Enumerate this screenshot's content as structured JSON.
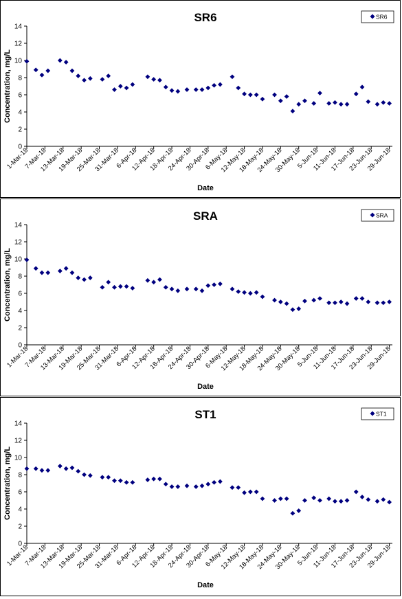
{
  "colors": {
    "marker": "#00007F",
    "axis": "#000000",
    "background": "#FFFFFF"
  },
  "chart_data": [
    {
      "type": "scatter",
      "title": "SR6",
      "xlabel": "Date",
      "ylabel": "Concentration, mg/L",
      "ylim": [
        0,
        14
      ],
      "yticks": [
        0,
        2,
        4,
        6,
        8,
        10,
        12,
        14
      ],
      "xlim": [
        "2018-03-01",
        "2018-06-30"
      ],
      "xtick_labels": [
        "1-Mar-18",
        "7-Mar-18",
        "13-Mar-18",
        "19-Mar-18",
        "25-Mar-18",
        "31-Mar-18",
        "6-Apr-18",
        "12-Apr-18",
        "18-Apr-18",
        "24-Apr-18",
        "30-Apr-18",
        "6-May-18",
        "12-May-18",
        "18-May-18",
        "24-May-18",
        "30-May-18",
        "5-Jun-18",
        "11-Jun-18",
        "17-Jun-18",
        "23-Jun-18",
        "29-Jun-18"
      ],
      "grid": false,
      "legend_position": "top-right",
      "series": [
        {
          "name": "SR6",
          "marker": "diamond",
          "x": [
            "2018-03-01",
            "2018-03-04",
            "2018-03-06",
            "2018-03-08",
            "2018-03-12",
            "2018-03-14",
            "2018-03-16",
            "2018-03-18",
            "2018-03-20",
            "2018-03-22",
            "2018-03-26",
            "2018-03-28",
            "2018-03-30",
            "2018-04-01",
            "2018-04-03",
            "2018-04-05",
            "2018-04-10",
            "2018-04-12",
            "2018-04-14",
            "2018-04-16",
            "2018-04-18",
            "2018-04-20",
            "2018-04-23",
            "2018-04-26",
            "2018-04-28",
            "2018-04-30",
            "2018-05-02",
            "2018-05-04",
            "2018-05-08",
            "2018-05-10",
            "2018-05-12",
            "2018-05-14",
            "2018-05-16",
            "2018-05-18",
            "2018-05-22",
            "2018-05-24",
            "2018-05-26",
            "2018-05-28",
            "2018-05-30",
            "2018-06-01",
            "2018-06-04",
            "2018-06-06",
            "2018-06-09",
            "2018-06-11",
            "2018-06-13",
            "2018-06-15",
            "2018-06-18",
            "2018-06-20",
            "2018-06-22",
            "2018-06-25",
            "2018-06-27",
            "2018-06-29"
          ],
          "y": [
            9.9,
            8.9,
            8.3,
            8.8,
            10.0,
            9.8,
            8.8,
            8.2,
            7.7,
            7.9,
            7.8,
            8.2,
            6.6,
            7.0,
            6.8,
            7.2,
            8.1,
            7.8,
            7.7,
            6.9,
            6.5,
            6.4,
            6.6,
            6.6,
            6.6,
            6.8,
            7.1,
            7.2,
            8.1,
            6.8,
            6.1,
            6.0,
            6.0,
            5.5,
            6.0,
            5.3,
            5.8,
            4.1,
            4.9,
            5.3,
            5.0,
            6.2,
            5.0,
            5.1,
            4.9,
            4.9,
            6.1,
            6.9,
            5.2,
            4.9,
            5.1,
            5.0
          ]
        }
      ]
    },
    {
      "type": "scatter",
      "title": "SRA",
      "xlabel": "Date",
      "ylabel": "Concentration, mg/L",
      "ylim": [
        0,
        14
      ],
      "yticks": [
        0,
        2,
        4,
        6,
        8,
        10,
        12,
        14
      ],
      "xlim": [
        "2018-03-01",
        "2018-06-30"
      ],
      "xtick_labels": [
        "1-Mar-18",
        "7-Mar-18",
        "13-Mar-18",
        "19-Mar-18",
        "25-Mar-18",
        "31-Mar-18",
        "6-Apr-18",
        "12-Apr-18",
        "18-Apr-18",
        "24-Apr-18",
        "30-Apr-18",
        "6-May-18",
        "12-May-18",
        "18-May-18",
        "24-May-18",
        "30-May-18",
        "5-Jun-18",
        "11-Jun-18",
        "17-Jun-18",
        "23-Jun-18",
        "29-Jun-18"
      ],
      "grid": false,
      "legend_position": "top-right",
      "series": [
        {
          "name": "SRA",
          "marker": "diamond",
          "x": [
            "2018-03-01",
            "2018-03-04",
            "2018-03-06",
            "2018-03-08",
            "2018-03-12",
            "2018-03-14",
            "2018-03-16",
            "2018-03-18",
            "2018-03-20",
            "2018-03-22",
            "2018-03-26",
            "2018-03-28",
            "2018-03-30",
            "2018-04-01",
            "2018-04-03",
            "2018-04-05",
            "2018-04-10",
            "2018-04-12",
            "2018-04-14",
            "2018-04-16",
            "2018-04-18",
            "2018-04-20",
            "2018-04-23",
            "2018-04-26",
            "2018-04-28",
            "2018-04-30",
            "2018-05-02",
            "2018-05-04",
            "2018-05-08",
            "2018-05-10",
            "2018-05-12",
            "2018-05-14",
            "2018-05-16",
            "2018-05-18",
            "2018-05-22",
            "2018-05-24",
            "2018-05-26",
            "2018-05-28",
            "2018-05-30",
            "2018-06-01",
            "2018-06-04",
            "2018-06-06",
            "2018-06-09",
            "2018-06-11",
            "2018-06-13",
            "2018-06-15",
            "2018-06-18",
            "2018-06-20",
            "2018-06-22",
            "2018-06-25",
            "2018-06-27",
            "2018-06-29"
          ],
          "y": [
            9.9,
            8.9,
            8.4,
            8.4,
            8.6,
            8.9,
            8.4,
            7.8,
            7.6,
            7.8,
            6.7,
            7.3,
            6.7,
            6.8,
            6.8,
            6.6,
            7.5,
            7.3,
            7.6,
            6.7,
            6.5,
            6.3,
            6.5,
            6.5,
            6.3,
            6.9,
            7.0,
            7.1,
            6.5,
            6.2,
            6.1,
            6.0,
            6.1,
            5.6,
            5.2,
            5.0,
            4.8,
            4.1,
            4.2,
            5.1,
            5.2,
            5.4,
            4.9,
            4.9,
            5.0,
            4.8,
            5.4,
            5.4,
            5.0,
            4.9,
            4.9,
            5.0
          ]
        }
      ]
    },
    {
      "type": "scatter",
      "title": "ST1",
      "xlabel": "Date",
      "ylabel": "Concentration, mg/L",
      "ylim": [
        0,
        14
      ],
      "yticks": [
        0,
        2,
        4,
        6,
        8,
        10,
        12,
        14
      ],
      "xlim": [
        "2018-03-01",
        "2018-06-30"
      ],
      "xtick_labels": [
        "1-Mar-18",
        "7-Mar-18",
        "13-Mar-18",
        "19-Mar-18",
        "25-Mar-18",
        "31-Mar-18",
        "6-Apr-18",
        "12-Apr-18",
        "18-Apr-18",
        "24-Apr-18",
        "30-Apr-18",
        "6-May-18",
        "12-May-18",
        "18-May-18",
        "24-May-18",
        "30-May-18",
        "5-Jun-18",
        "11-Jun-18",
        "17-Jun-18",
        "23-Jun-18",
        "29-Jun-18"
      ],
      "grid": false,
      "legend_position": "top-right",
      "series": [
        {
          "name": "ST1",
          "marker": "diamond",
          "x": [
            "2018-03-01",
            "2018-03-04",
            "2018-03-06",
            "2018-03-08",
            "2018-03-12",
            "2018-03-14",
            "2018-03-16",
            "2018-03-18",
            "2018-03-20",
            "2018-03-22",
            "2018-03-26",
            "2018-03-28",
            "2018-03-30",
            "2018-04-01",
            "2018-04-03",
            "2018-04-05",
            "2018-04-10",
            "2018-04-12",
            "2018-04-14",
            "2018-04-16",
            "2018-04-18",
            "2018-04-20",
            "2018-04-23",
            "2018-04-26",
            "2018-04-28",
            "2018-04-30",
            "2018-05-02",
            "2018-05-04",
            "2018-05-08",
            "2018-05-10",
            "2018-05-12",
            "2018-05-14",
            "2018-05-16",
            "2018-05-18",
            "2018-05-22",
            "2018-05-24",
            "2018-05-26",
            "2018-05-28",
            "2018-05-30",
            "2018-06-01",
            "2018-06-04",
            "2018-06-06",
            "2018-06-09",
            "2018-06-11",
            "2018-06-13",
            "2018-06-15",
            "2018-06-18",
            "2018-06-20",
            "2018-06-22",
            "2018-06-25",
            "2018-06-27",
            "2018-06-29"
          ],
          "y": [
            8.7,
            8.7,
            8.5,
            8.5,
            9.0,
            8.7,
            8.8,
            8.4,
            8.0,
            7.9,
            7.7,
            7.7,
            7.3,
            7.3,
            7.1,
            7.1,
            7.4,
            7.5,
            7.5,
            6.9,
            6.6,
            6.6,
            6.7,
            6.6,
            6.7,
            6.9,
            7.1,
            7.2,
            6.5,
            6.5,
            5.9,
            6.0,
            6.0,
            5.2,
            5.0,
            5.2,
            5.2,
            3.5,
            3.8,
            5.0,
            5.3,
            5.0,
            5.2,
            4.9,
            4.9,
            5.0,
            6.0,
            5.4,
            5.1,
            4.9,
            5.1,
            4.8
          ]
        }
      ]
    }
  ]
}
